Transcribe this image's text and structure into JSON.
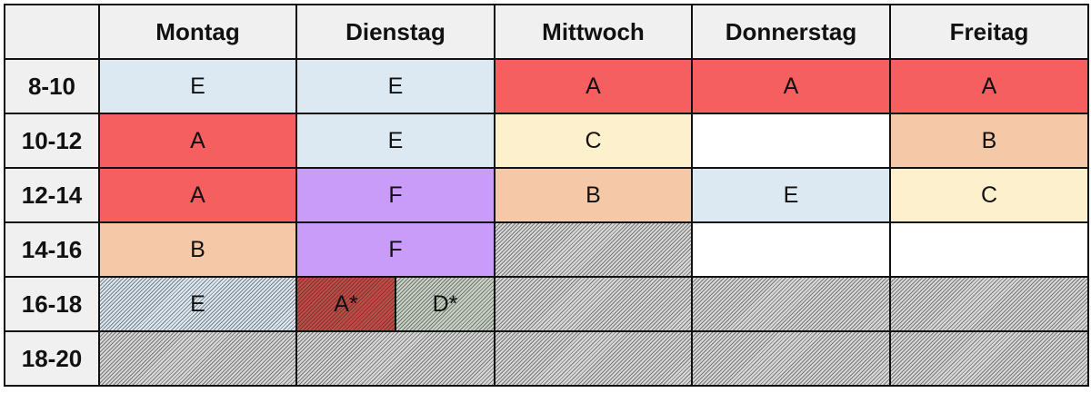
{
  "colors": {
    "E": "#dce9f3",
    "A": "#f55f5f",
    "B": "#f5c9a8",
    "C": "#fdf0cc",
    "F": "#c89cf8",
    "empty": "#ffffff",
    "gray": "#d8d8d8",
    "A_dark": "#c84a44",
    "D": "#c9d2c6"
  },
  "header": {
    "corner": "",
    "days": [
      "Montag",
      "Dienstag",
      "Mittwoch",
      "Donnerstag",
      "Freitag"
    ]
  },
  "rows": [
    {
      "time": "8-10",
      "cells": [
        {
          "text": "E",
          "color": "E"
        },
        {
          "text": "E",
          "color": "E"
        },
        {
          "text": "A",
          "color": "A"
        },
        {
          "text": "A",
          "color": "A"
        },
        {
          "text": "A",
          "color": "A"
        }
      ]
    },
    {
      "time": "10-12",
      "cells": [
        {
          "text": "A",
          "color": "A"
        },
        {
          "text": "E",
          "color": "E"
        },
        {
          "text": "C",
          "color": "C"
        },
        {
          "text": "",
          "color": "empty"
        },
        {
          "text": "B",
          "color": "B"
        }
      ]
    },
    {
      "time": "12-14",
      "cells": [
        {
          "text": "A",
          "color": "A"
        },
        {
          "text": "F",
          "color": "F"
        },
        {
          "text": "B",
          "color": "B"
        },
        {
          "text": "E",
          "color": "E"
        },
        {
          "text": "C",
          "color": "C"
        }
      ]
    },
    {
      "time": "14-16",
      "cells": [
        {
          "text": "B",
          "color": "B"
        },
        {
          "text": "F",
          "color": "F"
        },
        {
          "text": "",
          "color": "gray",
          "hatched": true
        },
        {
          "text": "",
          "color": "empty"
        },
        {
          "text": "",
          "color": "empty"
        }
      ]
    },
    {
      "time": "16-18",
      "cells": [
        {
          "text": "E",
          "color": "E",
          "hatched": true
        },
        {
          "split": [
            {
              "text": "A*",
              "color": "A_dark",
              "hatched": true
            },
            {
              "text": "D*",
              "color": "D",
              "hatched": true
            }
          ]
        },
        {
          "text": "",
          "color": "gray",
          "hatched": true
        },
        {
          "text": "",
          "color": "gray",
          "hatched": true
        },
        {
          "text": "",
          "color": "gray",
          "hatched": true
        }
      ]
    },
    {
      "time": "18-20",
      "cells": [
        {
          "text": "",
          "color": "gray",
          "hatched": true
        },
        {
          "text": "",
          "color": "gray",
          "hatched": true
        },
        {
          "text": "",
          "color": "gray",
          "hatched": true
        },
        {
          "text": "",
          "color": "gray",
          "hatched": true
        },
        {
          "text": "",
          "color": "gray",
          "hatched": true
        }
      ]
    }
  ]
}
